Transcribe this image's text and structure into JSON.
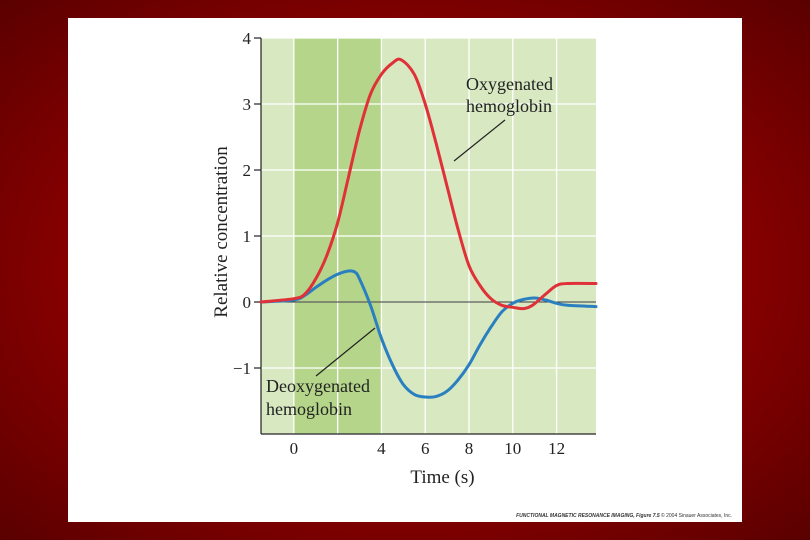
{
  "colors": {
    "plot_bg": "#d8e8c1",
    "stimulus_band": "#b5d68a",
    "grid": "#ffffff",
    "oxy_line": "#e03038",
    "deoxy_line": "#2a7fc0",
    "zero_line": "#333333",
    "slide_bg": "#ffffff",
    "frame_bg": "#8a0000"
  },
  "chart_data": {
    "type": "line",
    "xlabel": "Time (s)",
    "ylabel": "Relative concentration",
    "xlim": [
      -1.5,
      13.8
    ],
    "ylim": [
      -2.0,
      4.0
    ],
    "xticks": [
      0,
      2,
      4,
      6,
      8,
      10,
      12
    ],
    "xtick_labels": [
      "0",
      "",
      "4",
      "6",
      "8",
      "10",
      "12"
    ],
    "yticks": [
      4,
      3,
      2,
      1,
      0,
      -1
    ],
    "ytick_labels": [
      "4",
      "3",
      "2",
      "1",
      "0",
      "−1"
    ],
    "grid": true,
    "stimulus_interval": [
      0,
      4
    ],
    "series": [
      {
        "name": "Oxygenated hemoglobin",
        "x": [
          -1.5,
          0,
          0.5,
          1,
          1.5,
          2,
          2.5,
          3,
          3.5,
          4,
          4.5,
          4.9,
          5.5,
          6,
          6.5,
          7,
          7.5,
          8,
          8.5,
          9,
          9.5,
          10,
          10.5,
          10.9,
          11.5,
          12,
          12.5,
          13.8
        ],
        "y": [
          0,
          0.05,
          0.12,
          0.35,
          0.7,
          1.2,
          1.9,
          2.6,
          3.15,
          3.45,
          3.62,
          3.67,
          3.45,
          3.0,
          2.4,
          1.75,
          1.1,
          0.55,
          0.25,
          0.05,
          -0.05,
          -0.08,
          -0.1,
          -0.05,
          0.12,
          0.25,
          0.28,
          0.28
        ]
      },
      {
        "name": "Deoxygenated hemoglobin",
        "x": [
          -1.5,
          0,
          0.5,
          1,
          1.5,
          2,
          2.5,
          2.8,
          3,
          3.5,
          4,
          4.5,
          5,
          5.5,
          6,
          6.5,
          7,
          7.5,
          8,
          8.5,
          9,
          9.5,
          10,
          10.5,
          11,
          11.5,
          12,
          12.5,
          13.8
        ],
        "y": [
          0,
          0.03,
          0.1,
          0.22,
          0.33,
          0.42,
          0.47,
          0.45,
          0.35,
          -0.05,
          -0.55,
          -0.95,
          -1.25,
          -1.4,
          -1.44,
          -1.43,
          -1.35,
          -1.18,
          -0.95,
          -0.65,
          -0.38,
          -0.15,
          -0.02,
          0.04,
          0.06,
          0.03,
          -0.02,
          -0.05,
          -0.07
        ]
      }
    ],
    "annotations": [
      {
        "target": "Oxygenated hemoglobin",
        "lines": [
          "Oxygenated",
          "hemoglobin"
        ]
      },
      {
        "target": "Deoxygenated hemoglobin",
        "lines": [
          "Deoxygenated",
          "hemoglobin"
        ]
      }
    ]
  },
  "credit": {
    "book": "FUNCTIONAL MAGNETIC RESONANCE IMAGING,",
    "figure": "Figure 7.5",
    "rest": "© 2004 Sinauer Associates, Inc."
  }
}
